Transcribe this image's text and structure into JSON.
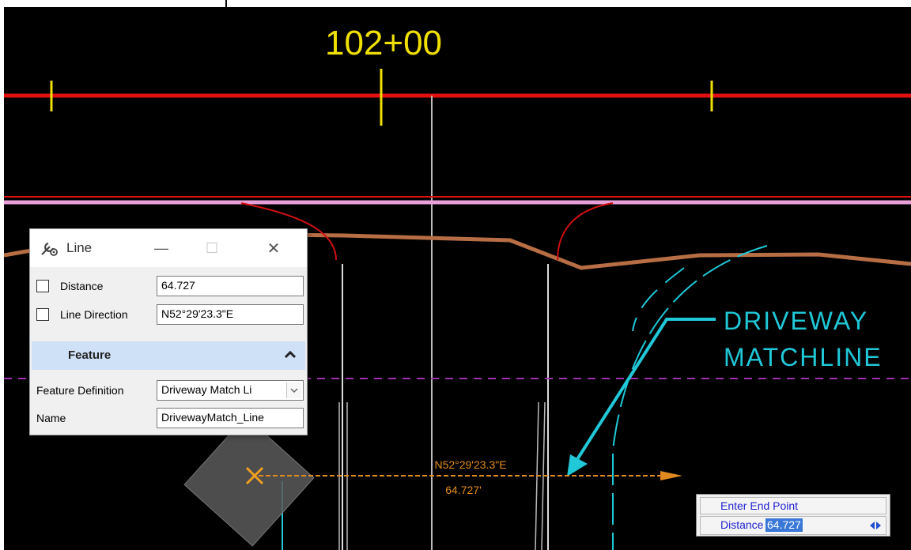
{
  "canvas": {
    "station_label": "102+00",
    "annotation": {
      "line1": "DRIVEWAY",
      "line2": "MATCHLINE"
    },
    "dynamic_bearing": "N52°29'23.3\"E",
    "dynamic_distance": "64.727'",
    "colors": {
      "background": "#000000",
      "alignment": "#e01010",
      "station_ticks": "#f0e000",
      "pink_line": "#e8a0d8",
      "tan_line": "#b86e44",
      "cyan": "#20c8d8",
      "purple_dash": "#a030b0",
      "dynamic_orange": "#e08a20"
    }
  },
  "dialog": {
    "title": "Line",
    "title_icon": "wrench-gear-icon",
    "minimize_glyph": "—",
    "maximize_glyph": "☐",
    "close_glyph": "✕",
    "distance": {
      "label": "Distance",
      "value": "64.727"
    },
    "line_direction": {
      "label": "Line Direction",
      "value": "N52°29'23.3\"E"
    },
    "feature_section": {
      "title": "Feature",
      "chevron": "chevron-up-icon"
    },
    "feature_definition": {
      "label": "Feature Definition",
      "value": "Driveway Match Li"
    },
    "name": {
      "label": "Name",
      "value": "DrivewayMatch_Line"
    }
  },
  "prompt": {
    "title": "Enter End Point",
    "label": "Distance",
    "value": "64.727",
    "arrows_icon": "left-right-arrows-icon"
  }
}
